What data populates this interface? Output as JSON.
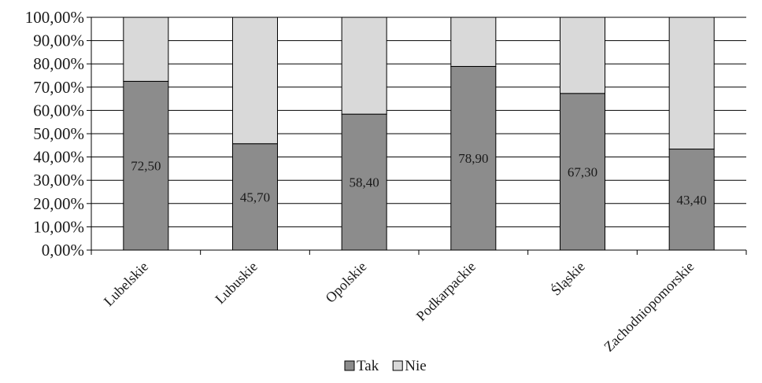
{
  "chart_data": {
    "type": "bar",
    "stacked": true,
    "categories": [
      "Lubelskie",
      "Lubuskie",
      "Opolskie",
      "Podkarpackie",
      "Śląskie",
      "Zachodniopomorskie"
    ],
    "series": [
      {
        "name": "Tak",
        "values": [
          72.5,
          45.7,
          58.4,
          78.9,
          67.3,
          43.4
        ],
        "color": "#8c8c8c",
        "data_labels": [
          "72,50",
          "45,70",
          "58,40",
          "78,90",
          "67,30",
          "43,40"
        ]
      },
      {
        "name": "Nie",
        "values": [
          27.5,
          54.3,
          41.6,
          21.1,
          32.7,
          56.6
        ],
        "color": "#d9d9d9"
      }
    ],
    "ylim": [
      0,
      100
    ],
    "yticks": [
      "0,00%",
      "10,00%",
      "20,00%",
      "30,00%",
      "40,00%",
      "50,00%",
      "60,00%",
      "70,00%",
      "80,00%",
      "90,00%",
      "100,00%"
    ],
    "grid": true,
    "legend_position": "bottom",
    "title": "",
    "xlabel": "",
    "ylabel": ""
  }
}
